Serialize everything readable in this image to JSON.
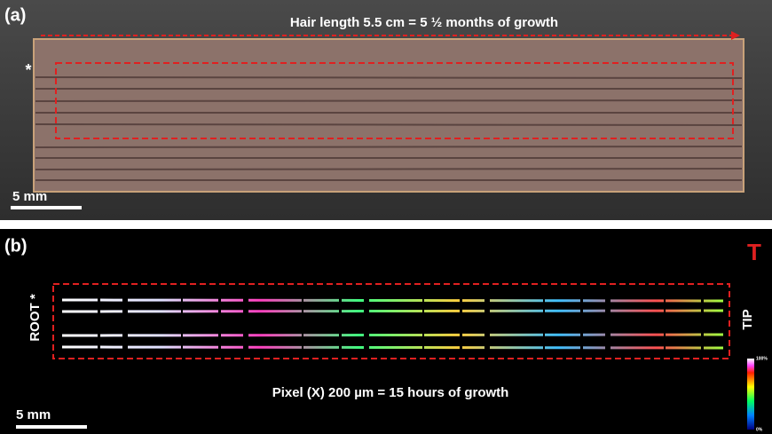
{
  "panel_a": {
    "label": "(a)",
    "caption": "Hair length 5.5 cm = 5 ½ months of growth",
    "marker": "*",
    "scale_bar": "5 mm"
  },
  "panel_b": {
    "label": "(b)",
    "corner_mark": "T",
    "root_label": "ROOT *",
    "tip_label": "TIP",
    "caption": "Pixel (X) 200 µm = 15 hours of growth",
    "scale_bar": "5 mm",
    "colorbar_max": "100%",
    "colorbar_min": "0%"
  }
}
